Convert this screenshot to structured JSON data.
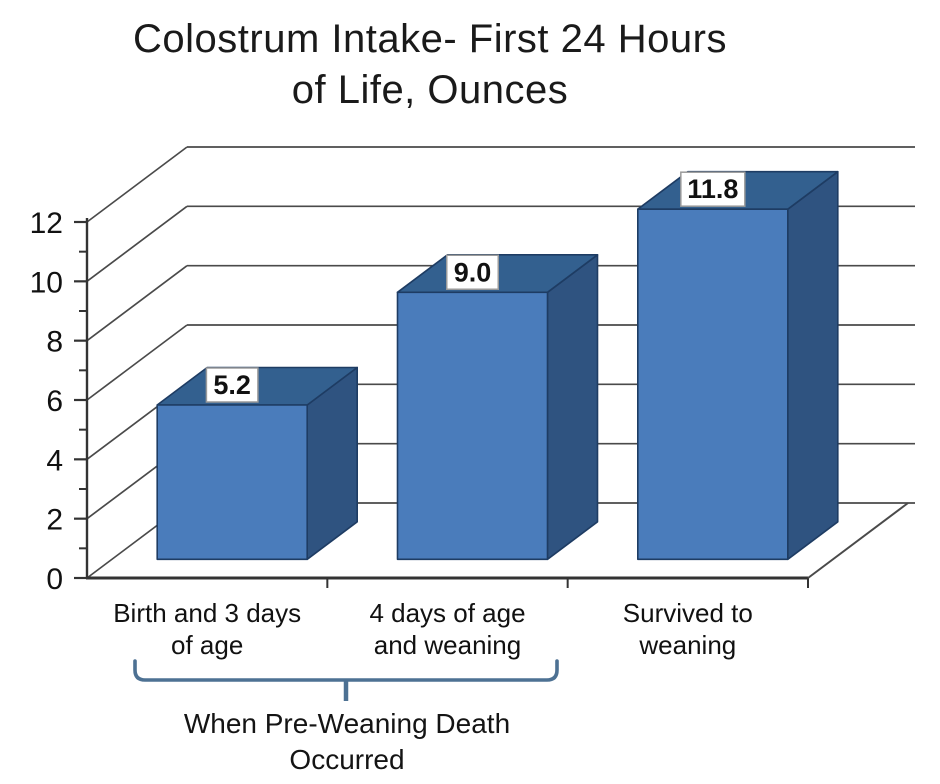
{
  "title": {
    "line1": "Colostrum Intake- First 24 Hours",
    "line2": "of Life, Ounces"
  },
  "chart_data": {
    "type": "bar",
    "projection": "3d",
    "title": "Colostrum Intake- First 24 Hours of Life, Ounces",
    "categories": [
      "Birth and 3 days\nof age",
      "4 days of age\nand weaning",
      "Survived to\nweaning"
    ],
    "values": [
      5.2,
      9.0,
      11.8
    ],
    "data_labels": [
      "5.2",
      "9.0",
      "11.8"
    ],
    "xlabel": "",
    "ylabel": "",
    "ylim": [
      0,
      12
    ],
    "yticks": [
      0,
      2,
      4,
      6,
      8,
      10,
      12
    ],
    "minor_tick_step": 1,
    "grid": true,
    "legend_position": "none"
  },
  "annotation": {
    "line1": "When Pre-Weaning Death",
    "line2": "Occurred",
    "spans_categories": [
      "Birth and 3 days of age",
      "4 days of age and weaning"
    ]
  },
  "colors": {
    "background": "#ffffff",
    "bar_front": "#4a7cbb",
    "bar_side": "#2f5380",
    "bar_top": "#33608f",
    "bar_outline": "#1e3c63",
    "axis": "#333333",
    "grid": "#4a4a4a",
    "text": "#111111",
    "label_box_fill": "#ffffff",
    "label_box_border": "#9a9a9a",
    "bracket": "#4d7193"
  }
}
